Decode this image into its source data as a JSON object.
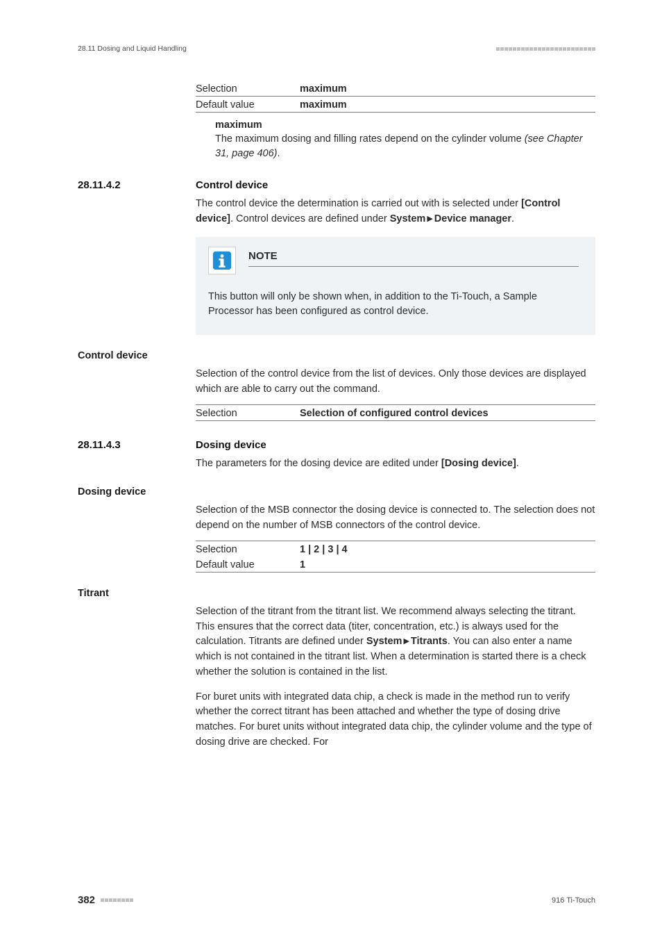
{
  "header": {
    "breadcrumb": "28.11 Dosing and Liquid Handling",
    "square_color": "#bfbfbf",
    "square_count": 24
  },
  "top_spec": {
    "rows": [
      {
        "k": "Selection",
        "v": "maximum"
      },
      {
        "k": "Default value",
        "v": "maximum"
      }
    ],
    "def_term": "maximum",
    "def_body_a": "The maximum dosing and filling rates depend on the cylinder volume ",
    "def_body_b": "(see Chapter 31, page 406)",
    "def_body_c": "."
  },
  "sec_control": {
    "num": "28.11.4.2",
    "title": "Control device",
    "intro_a": "The control device the determination is carried out with is selected under ",
    "intro_b": "[Control device]",
    "intro_c": ". Control devices are defined under ",
    "intro_d": "System",
    "intro_e": "Device manager",
    "intro_f": "."
  },
  "note": {
    "title": "NOTE",
    "body": "This button will only be shown when, in addition to the Ti-Touch, a Sample Processor has been configured as control device.",
    "icon_border": "#cfcfcf",
    "icon_bg": "#ffffff",
    "icon_fill": "#1f8fd6"
  },
  "control_device": {
    "label": "Control device",
    "para": "Selection of the control device from the list of devices. Only those devices are displayed which are able to carry out the command.",
    "spec": {
      "k": "Selection",
      "v": "Selection of configured control devices"
    }
  },
  "sec_dosing": {
    "num": "28.11.4.3",
    "title": "Dosing device",
    "intro_a": "The parameters for the dosing device are edited under ",
    "intro_b": "[Dosing device]",
    "intro_c": "."
  },
  "dosing_device": {
    "label": "Dosing device",
    "para": "Selection of the MSB connector the dosing device is connected to. The selection does not depend on the number of MSB connectors of the control device.",
    "spec_rows": [
      {
        "k": "Selection",
        "v": "1 | 2 | 3 | 4"
      },
      {
        "k": "Default value",
        "v": "1"
      }
    ]
  },
  "titrant": {
    "label": "Titrant",
    "p1_a": "Selection of the titrant from the titrant list. We recommend always selecting the titrant. This ensures that the correct data (titer, concentration, etc.) is always used for the calculation. Titrants are defined under ",
    "p1_b": "System",
    "p1_c": "Titrants",
    "p1_d": ". You can also enter a name which is not contained in the titrant list. When a determination is started there is a check whether the solution is contained in the list.",
    "p2": "For buret units with integrated data chip, a check is made in the method run to verify whether the correct titrant has been attached and whether the type of dosing drive matches. For buret units without integrated data chip, the cylinder volume and the type of dosing drive are checked. For"
  },
  "footer": {
    "page": "382",
    "product": "916 Ti-Touch",
    "square_count": 8,
    "square_color": "#bfbfbf"
  },
  "colors": {
    "text": "#2a2a2a",
    "rule": "#808080",
    "note_bg": "#eff3f6"
  }
}
